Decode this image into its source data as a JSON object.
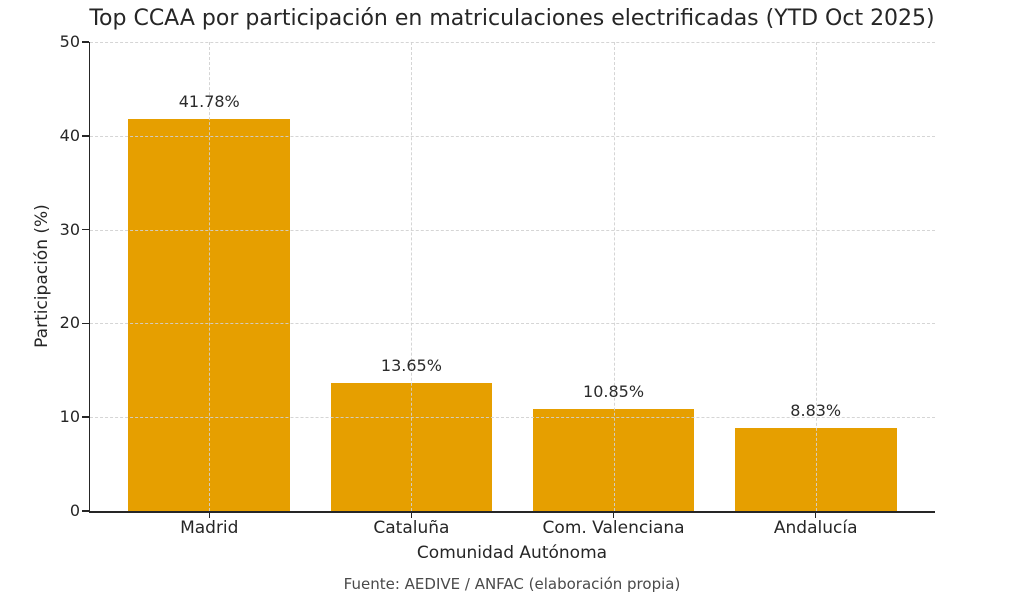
{
  "chart_data": {
    "type": "bar",
    "title": "Top CCAA por participación en matriculaciones electrificadas (YTD Oct 2025)",
    "categories": [
      "Madrid",
      "Cataluña",
      "Com. Valenciana",
      "Andalucía"
    ],
    "values": [
      41.78,
      13.65,
      10.85,
      8.83
    ],
    "value_labels": [
      "41.78%",
      "13.65%",
      "10.85%",
      "8.83%"
    ],
    "xlabel": "Comunidad Autónoma",
    "ylabel": "Participación (%)",
    "ylim": [
      0,
      50
    ],
    "yticks": [
      0,
      10,
      20,
      30,
      40,
      50
    ],
    "grid": "dashed gridlines on both axes, drawn above bars",
    "legend": "none",
    "bar_color": "#E69F00",
    "text_color": "#262626",
    "caption": "Fuente: AEDIVE / ANFAC (elaboración propia)"
  }
}
